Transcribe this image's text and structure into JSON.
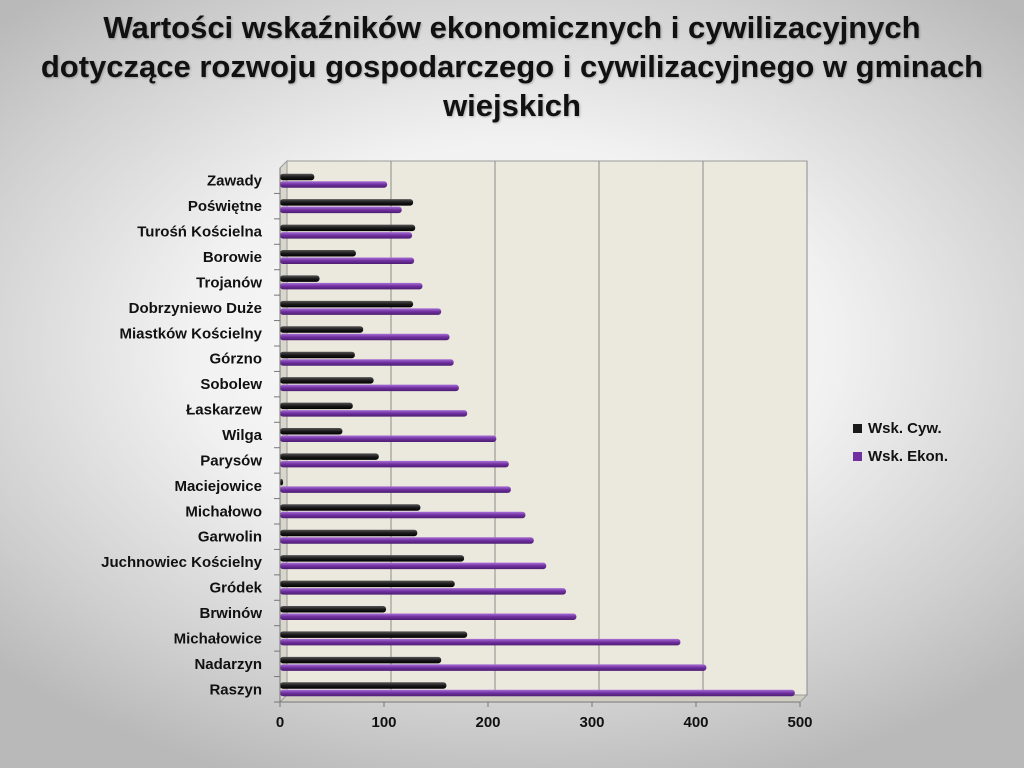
{
  "title": "Wartości wskaźników ekonomicznych i cywilizacyjnych dotyczące rozwoju gospodarczego i cywilizacyjnego w gminach wiejskich",
  "chart_data": {
    "type": "bar",
    "orientation": "horizontal",
    "categories": [
      "Raszyn",
      "Nadarzyn",
      "Michałowice",
      "Brwinów",
      "Gródek",
      "Juchnowiec Kościelny",
      "Garwolin",
      "Michałowo",
      "Maciejowice",
      "Parysów",
      "Wilga",
      "Łaskarzew",
      "Sobolew",
      "Górzno",
      "Miastków Kościelny",
      "Dobrzyniewo Duże",
      "Trojanów",
      "Borowie",
      "Turośń Kościelna",
      "Poświętne",
      "Zawady"
    ],
    "series": [
      {
        "name": "Wsk. Cyw.",
        "color": "#1a1a1a",
        "values": [
          160,
          155,
          180,
          102,
          168,
          177,
          132,
          135,
          3,
          95,
          60,
          70,
          90,
          72,
          80,
          128,
          38,
          73,
          130,
          128,
          33
        ]
      },
      {
        "name": "Wsk. Ekon.",
        "color": "#7030a0",
        "values": [
          495,
          410,
          385,
          285,
          275,
          256,
          244,
          236,
          222,
          220,
          208,
          180,
          172,
          167,
          163,
          155,
          137,
          129,
          127,
          117,
          103
        ]
      }
    ],
    "xlim": [
      0,
      500
    ],
    "xticks": [
      "0",
      "100",
      "200",
      "300",
      "400",
      "500"
    ],
    "grid": true,
    "legend": "right"
  }
}
